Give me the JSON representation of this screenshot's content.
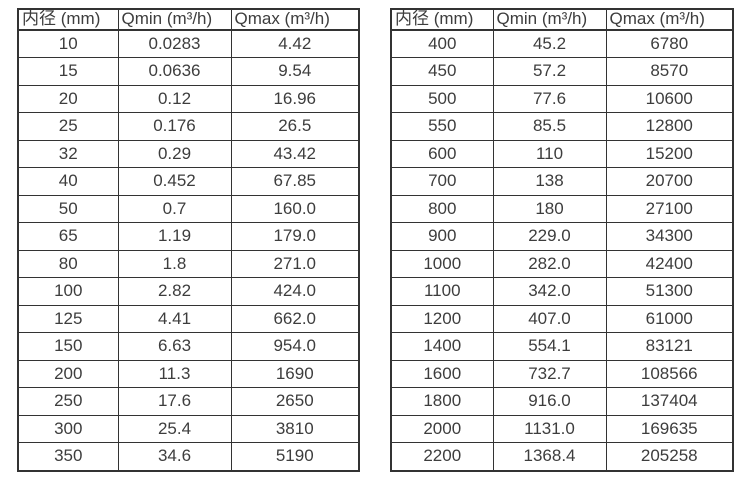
{
  "colors": {
    "border": "#333333",
    "text": "#3d3d3d",
    "background": "#ffffff"
  },
  "tables": [
    {
      "name": "flow-spec-table-small-diameters",
      "headers": [
        "内径 (mm)",
        "Qmin (m³/h)",
        "Qmax (m³/h)"
      ],
      "rows": [
        [
          "10",
          "0.0283",
          "4.42"
        ],
        [
          "15",
          "0.0636",
          "9.54"
        ],
        [
          "20",
          "0.12",
          "16.96"
        ],
        [
          "25",
          "0.176",
          "26.5"
        ],
        [
          "32",
          "0.29",
          "43.42"
        ],
        [
          "40",
          "0.452",
          "67.85"
        ],
        [
          "50",
          "0.7",
          "160.0"
        ],
        [
          "65",
          "1.19",
          "179.0"
        ],
        [
          "80",
          "1.8",
          "271.0"
        ],
        [
          "100",
          "2.82",
          "424.0"
        ],
        [
          "125",
          "4.41",
          "662.0"
        ],
        [
          "150",
          "6.63",
          "954.0"
        ],
        [
          "200",
          "11.3",
          "1690"
        ],
        [
          "250",
          "17.6",
          "2650"
        ],
        [
          "300",
          "25.4",
          "3810"
        ],
        [
          "350",
          "34.6",
          "5190"
        ]
      ]
    },
    {
      "name": "flow-spec-table-large-diameters",
      "headers": [
        "内径 (mm)",
        "Qmin (m³/h)",
        "Qmax (m³/h)"
      ],
      "rows": [
        [
          "400",
          "45.2",
          "6780"
        ],
        [
          "450",
          "57.2",
          "8570"
        ],
        [
          "500",
          "77.6",
          "10600"
        ],
        [
          "550",
          "85.5",
          "12800"
        ],
        [
          "600",
          "110",
          "15200"
        ],
        [
          "700",
          "138",
          "20700"
        ],
        [
          "800",
          "180",
          "27100"
        ],
        [
          "900",
          "229.0",
          "34300"
        ],
        [
          "1000",
          "282.0",
          "42400"
        ],
        [
          "1100",
          "342.0",
          "51300"
        ],
        [
          "1200",
          "407.0",
          "61000"
        ],
        [
          "1400",
          "554.1",
          "83121"
        ],
        [
          "1600",
          "732.7",
          "108566"
        ],
        [
          "1800",
          "916.0",
          "137404"
        ],
        [
          "2000",
          "1131.0",
          "169635"
        ],
        [
          "2200",
          "1368.4",
          "205258"
        ]
      ]
    }
  ]
}
